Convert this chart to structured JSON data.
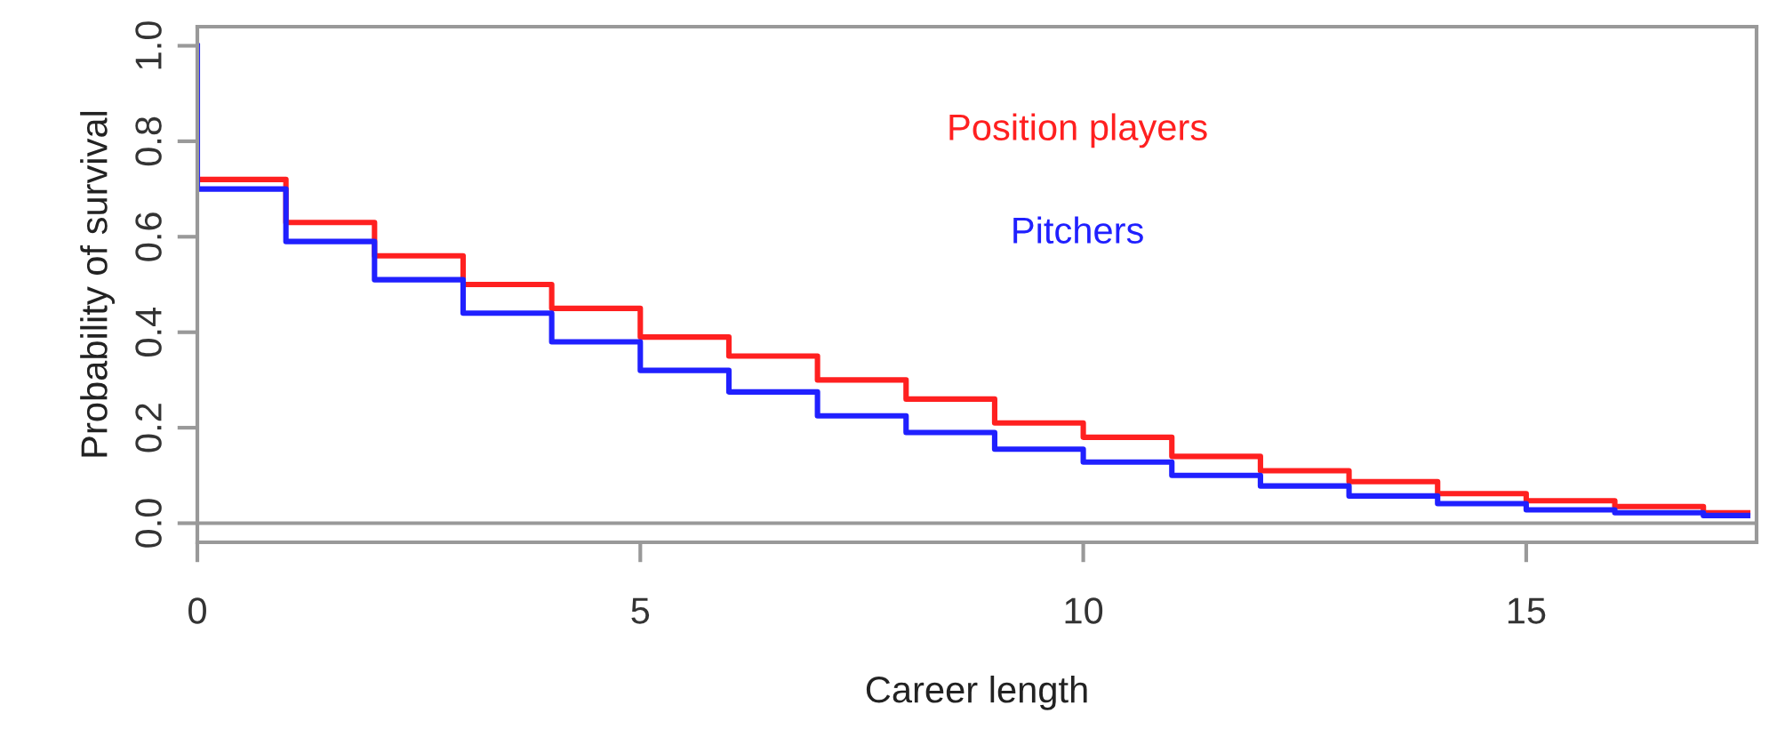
{
  "chart_data": {
    "type": "step",
    "xlabel": "Career length",
    "ylabel": "Probability of survival",
    "x": [
      0,
      0,
      1,
      2,
      3,
      4,
      5,
      6,
      7,
      8,
      9,
      10,
      11,
      12,
      13,
      14,
      15,
      16,
      17,
      17.5
    ],
    "series": [
      {
        "name": "Position players",
        "color": "#ff2020",
        "values": [
          null,
          0.72,
          0.63,
          0.56,
          0.5,
          0.45,
          0.39,
          0.35,
          0.3,
          0.26,
          0.21,
          0.18,
          0.14,
          0.11,
          0.087,
          0.062,
          0.047,
          0.035,
          0.022,
          0.022
        ]
      },
      {
        "name": "Pitchers",
        "color": "#2020ff",
        "values": [
          1.0,
          0.7,
          0.59,
          0.51,
          0.44,
          0.38,
          0.32,
          0.275,
          0.225,
          0.19,
          0.155,
          0.128,
          0.1,
          0.078,
          0.057,
          0.041,
          0.028,
          0.022,
          0.016,
          0.016
        ]
      }
    ],
    "xlim": [
      0,
      17.6
    ],
    "xticks": [
      0,
      5,
      10,
      15
    ],
    "ylim": [
      -0.04,
      1.04
    ],
    "yticks": [
      {
        "value": 0,
        "label": "0.0"
      },
      {
        "value": 0.2,
        "label": "0.2"
      },
      {
        "value": 0.4,
        "label": "0.4"
      },
      {
        "value": 0.6,
        "label": "0.6"
      },
      {
        "value": 0.8,
        "label": "0.8"
      },
      {
        "value": 1.0,
        "label": "1.0"
      }
    ],
    "ref_lines": [
      {
        "axis": "y",
        "value": 0,
        "color": "#999999"
      }
    ],
    "grid": false,
    "legend": "top right"
  }
}
